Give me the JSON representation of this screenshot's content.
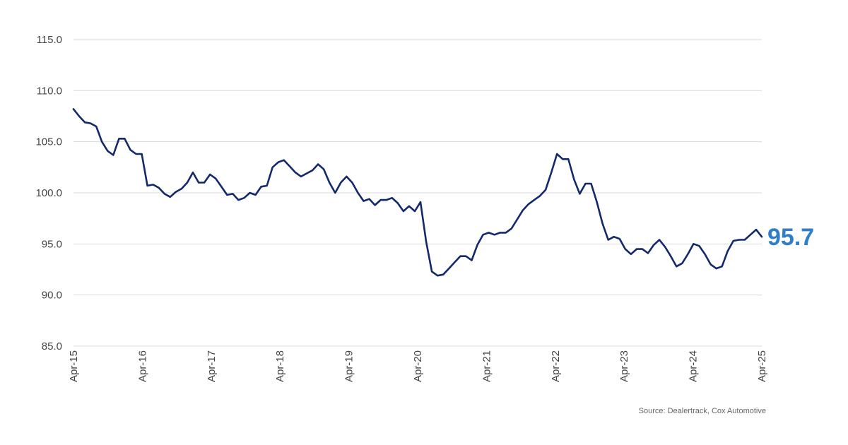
{
  "chart_data": {
    "type": "line",
    "title": "",
    "xlabel": "",
    "ylabel": "",
    "ylim": [
      85,
      115
    ],
    "yticks": [
      "85.0",
      "90.0",
      "95.0",
      "100.0",
      "105.0",
      "110.0",
      "115.0"
    ],
    "xticks": [
      "Apr-15",
      "Apr-16",
      "Apr-17",
      "Apr-18",
      "Apr-19",
      "Apr-20",
      "Apr-21",
      "Apr-22",
      "Apr-23",
      "Apr-24",
      "Apr-25"
    ],
    "x_start": "Apr-15",
    "x_end": "Apr-25",
    "grid": "horizontal",
    "legend": "none",
    "series": [
      {
        "color": "#13296b",
        "values": [
          108.2,
          107.5,
          106.9,
          106.8,
          106.5,
          105.0,
          104.1,
          103.7,
          105.3,
          105.3,
          104.2,
          103.8,
          103.8,
          100.7,
          100.8,
          100.5,
          99.9,
          99.6,
          100.1,
          100.4,
          101.0,
          102.0,
          101.0,
          101.0,
          101.8,
          101.4,
          100.6,
          99.8,
          99.9,
          99.3,
          99.5,
          100.0,
          99.8,
          100.6,
          100.7,
          102.5,
          103.0,
          103.2,
          102.6,
          102.0,
          101.6,
          101.9,
          102.2,
          102.8,
          102.3,
          101.0,
          100.0,
          101.0,
          101.6,
          101.0,
          100.0,
          99.2,
          99.4,
          98.8,
          99.3,
          99.3,
          99.5,
          99.0,
          98.2,
          98.7,
          98.2,
          99.1,
          95.2,
          92.3,
          91.9,
          92.0,
          92.6,
          93.2,
          93.8,
          93.8,
          93.4,
          94.9,
          95.9,
          96.1,
          95.9,
          96.1,
          96.1,
          96.5,
          97.4,
          98.3,
          98.9,
          99.3,
          99.7,
          100.3,
          102.0,
          103.8,
          103.3,
          103.3,
          101.3,
          99.9,
          100.9,
          100.9,
          99.1,
          97.0,
          95.4,
          95.7,
          95.5,
          94.5,
          94.0,
          94.5,
          94.5,
          94.1,
          94.9,
          95.4,
          94.7,
          93.8,
          92.8,
          93.1,
          94.0,
          95.0,
          94.8,
          94.0,
          93.0,
          92.6,
          92.8,
          94.3,
          95.3,
          95.4,
          95.4,
          95.9,
          96.4,
          95.7
        ]
      }
    ],
    "end_label": "95.7",
    "end_label_color": "#2f7ec9"
  },
  "source": "Source: Dealertrack, Cox Automotive"
}
